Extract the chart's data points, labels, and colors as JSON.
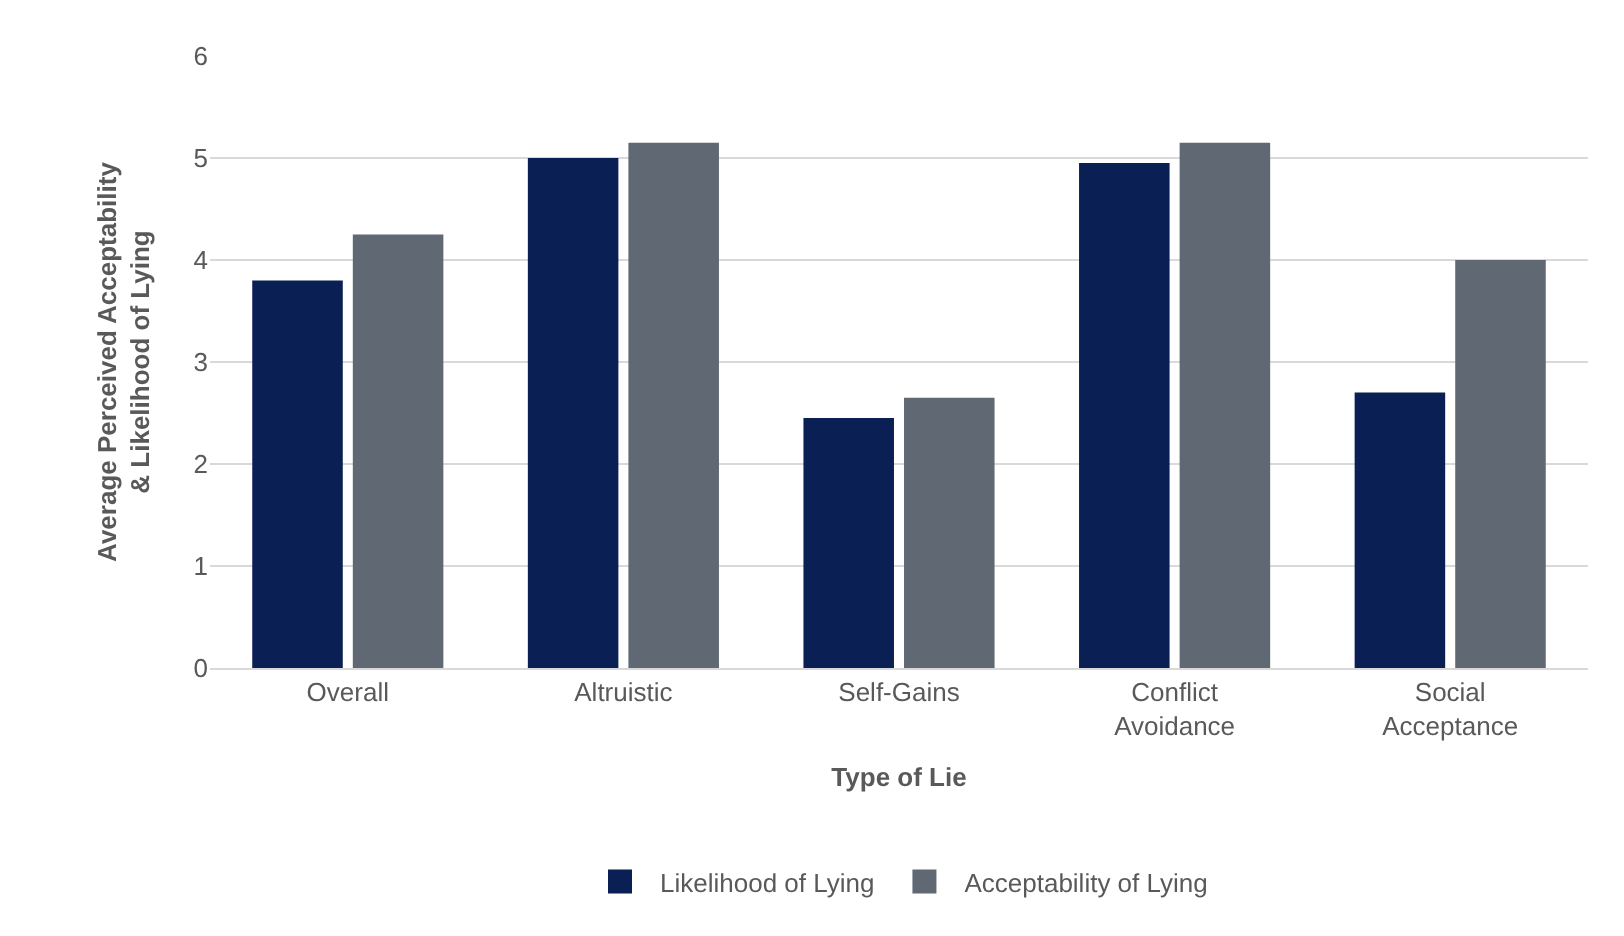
{
  "chart_data": {
    "type": "bar",
    "xlabel": "Type of Lie",
    "ylabel": "Average Perceived Acceptability & Likelihood of Lying",
    "categories": [
      "Overall",
      "Altruistic",
      "Self-Gains",
      "Conflict Avoidance",
      "Social Acceptance"
    ],
    "series": [
      {
        "name": "Likelihood of Lying",
        "color": "#0a1f54",
        "values": [
          3.8,
          5.0,
          2.45,
          4.95,
          2.7
        ]
      },
      {
        "name": "Acceptability of Lying",
        "color": "#5f6873",
        "values": [
          4.25,
          5.15,
          2.65,
          5.15,
          4.0
        ]
      }
    ],
    "ylim": [
      0,
      6
    ],
    "yticks": [
      0,
      1,
      2,
      3,
      4,
      5,
      6
    ],
    "grid": "y",
    "legend": "bottom"
  }
}
